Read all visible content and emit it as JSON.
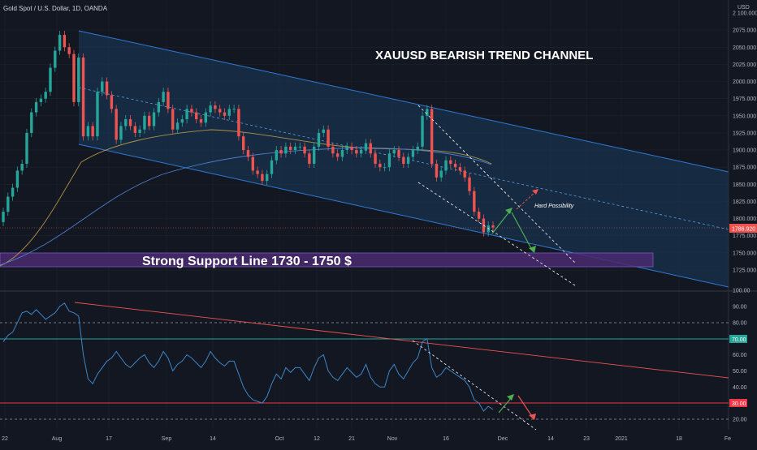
{
  "header": {
    "symbol_title": "Gold Spot / U.S. Dollar, 1D, OANDA",
    "currency": "USD"
  },
  "annotations": {
    "title": "XAUUSD BEARISH TREND CHANNEL",
    "support": "Strong Support Line 1730 - 1750 $",
    "hard_possibility": "Hard Possibility"
  },
  "colors": {
    "background": "#131722",
    "up_candle": "#26a69a",
    "down_candle": "#ef5350",
    "channel_fill": "#1a3a5c",
    "channel_line": "#2e7bd6",
    "support_zone": "#4a2a6e",
    "rsi_line": "#3d86c6",
    "rsi_upper": "#26a69a",
    "rsi_lower": "#f23645",
    "price_badge": "#ef5350"
  },
  "chart_data": [
    {
      "type": "candlestick",
      "title": "Gold Spot / U.S. Dollar, 1D, OANDA",
      "ylabel": "USD",
      "ylim": [
        1705,
        2100
      ],
      "y_ticks": [
        1725,
        1750,
        1775,
        1800,
        1825,
        1850,
        1875,
        1900,
        1925,
        1950,
        1975,
        2000,
        2025,
        2050,
        2075,
        2100
      ],
      "y_tick_labels": [
        "1725.000",
        "1750.000",
        "1775.000",
        "1800.000",
        "1825.000",
        "1850.000",
        "1875.000",
        "1900.000",
        "1925.000",
        "1950.000",
        "1975.000",
        "2000.000",
        "2025.000",
        "2050.000",
        "2075.000",
        "2 100.000"
      ],
      "x_tick_labels": [
        "22",
        "Aug",
        "17",
        "Sep",
        "14",
        "Oct",
        "12",
        "21",
        "Nov",
        "16",
        "Dec",
        "14",
        "23",
        "2021",
        "18",
        "Fe"
      ],
      "last_price": 1786.92,
      "last_price_label": "1786.920",
      "close": [
        1810,
        1832,
        1845,
        1870,
        1880,
        1925,
        1955,
        1970,
        1975,
        1985,
        2020,
        2045,
        2068,
        2050,
        2040,
        1970,
        2035,
        1920,
        1935,
        1920,
        1985,
        2000,
        1980,
        1960,
        1915,
        1935,
        1945,
        1935,
        1925,
        1930,
        1950,
        1935,
        1955,
        1970,
        1985,
        1960,
        1930,
        1940,
        1945,
        1960,
        1955,
        1945,
        1940,
        1955,
        1965,
        1960,
        1955,
        1950,
        1960,
        1960,
        1920,
        1900,
        1890,
        1870,
        1865,
        1855,
        1865,
        1885,
        1900,
        1895,
        1905,
        1900,
        1905,
        1905,
        1895,
        1880,
        1905,
        1925,
        1930,
        1905,
        1895,
        1890,
        1900,
        1905,
        1900,
        1895,
        1900,
        1910,
        1895,
        1880,
        1875,
        1875,
        1895,
        1900,
        1890,
        1880,
        1890,
        1900,
        1905,
        1950,
        1960,
        1880,
        1860,
        1870,
        1885,
        1880,
        1875,
        1870,
        1860,
        1840,
        1810,
        1800,
        1780,
        1790,
        1787
      ],
      "annotations": [
        "XAUUSD BEARISH TREND CHANNEL",
        "Strong Support Line 1730 - 1750 $",
        "Hard Possibility"
      ],
      "support_zone": [
        1730,
        1750
      ]
    },
    {
      "type": "line",
      "title": "",
      "ylim": [
        15,
        100
      ],
      "y_ticks": [
        20,
        30,
        40,
        50,
        60,
        70,
        80,
        90,
        100
      ],
      "y_tick_labels": [
        "20.00",
        "30.00",
        "40.00",
        "50.00",
        "60.00",
        "70.00",
        "80.00",
        "90.00",
        "100.00"
      ],
      "bands": {
        "upper": 70,
        "lower": 30,
        "upper_label": "70.00",
        "lower_label": "30.00"
      },
      "dashed_levels": [
        80,
        20
      ],
      "values": [
        68,
        72,
        74,
        80,
        86,
        87,
        85,
        88,
        85,
        82,
        84,
        86,
        90,
        92,
        87,
        86,
        84,
        60,
        45,
        42,
        48,
        52,
        56,
        58,
        62,
        58,
        54,
        52,
        55,
        58,
        60,
        55,
        52,
        56,
        62,
        58,
        50,
        54,
        56,
        60,
        58,
        55,
        52,
        56,
        62,
        58,
        55,
        53,
        56,
        56,
        48,
        40,
        35,
        32,
        31,
        30,
        34,
        42,
        48,
        45,
        52,
        49,
        52,
        52,
        48,
        44,
        52,
        58,
        60,
        50,
        46,
        44,
        48,
        52,
        49,
        46,
        48,
        54,
        46,
        42,
        40,
        40,
        50,
        54,
        48,
        45,
        50,
        55,
        58,
        68,
        70,
        52,
        46,
        48,
        52,
        50,
        48,
        46,
        44,
        40,
        32,
        30,
        25,
        28,
        26
      ]
    }
  ]
}
